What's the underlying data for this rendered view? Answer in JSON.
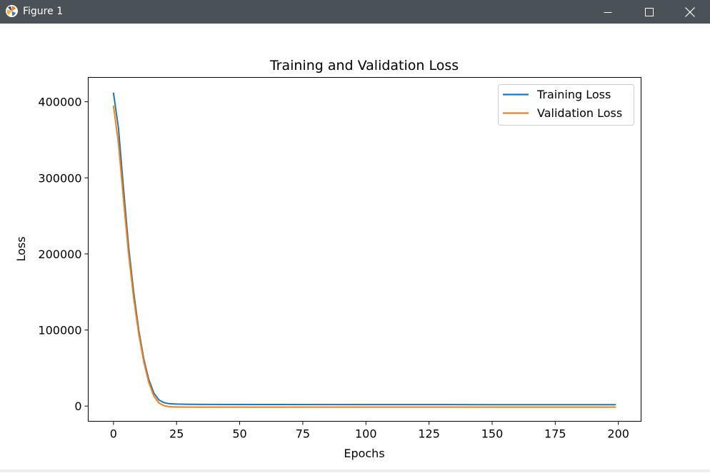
{
  "window": {
    "title": "Figure 1",
    "icons": {
      "app": "matplotlib-app-icon",
      "minimize": "minimize-icon",
      "maximize": "maximize-icon",
      "close": "close-icon"
    }
  },
  "colors": {
    "titlebar": "#4a5157",
    "training": "#1f77b4",
    "validation": "#ff7f0e"
  },
  "chart_data": {
    "type": "line",
    "title": "Training and Validation Loss",
    "xlabel": "Epochs",
    "ylabel": "Loss",
    "xlim": [
      -10,
      209
    ],
    "ylim": [
      -20000,
      432000
    ],
    "xticks": [
      0,
      25,
      50,
      75,
      100,
      125,
      150,
      175,
      200
    ],
    "yticks": [
      0,
      100000,
      200000,
      300000,
      400000
    ],
    "grid": false,
    "legend": "top-right",
    "series": [
      {
        "name": "Training Loss",
        "color": "#1f77b4",
        "points": [
          [
            0,
            412000
          ],
          [
            2,
            365000
          ],
          [
            4,
            285000
          ],
          [
            6,
            210000
          ],
          [
            8,
            150000
          ],
          [
            10,
            100000
          ],
          [
            12,
            62000
          ],
          [
            14,
            35000
          ],
          [
            16,
            17000
          ],
          [
            18,
            8000
          ],
          [
            20,
            4500
          ],
          [
            22,
            3200
          ],
          [
            25,
            2600
          ],
          [
            30,
            2300
          ],
          [
            40,
            2100
          ],
          [
            60,
            2000
          ],
          [
            100,
            1900
          ],
          [
            150,
            1850
          ],
          [
            199,
            1800
          ]
        ]
      },
      {
        "name": "Validation Loss",
        "color": "#ff7f0e",
        "points": [
          [
            0,
            395000
          ],
          [
            2,
            345000
          ],
          [
            4,
            270000
          ],
          [
            6,
            200000
          ],
          [
            8,
            142000
          ],
          [
            10,
            95000
          ],
          [
            12,
            58000
          ],
          [
            14,
            31000
          ],
          [
            16,
            13000
          ],
          [
            18,
            4000
          ],
          [
            20,
            500
          ],
          [
            22,
            -800
          ],
          [
            25,
            -1200
          ],
          [
            30,
            -1300
          ],
          [
            60,
            -1300
          ],
          [
            100,
            -1300
          ],
          [
            150,
            -1300
          ],
          [
            199,
            -1300
          ]
        ]
      }
    ]
  }
}
